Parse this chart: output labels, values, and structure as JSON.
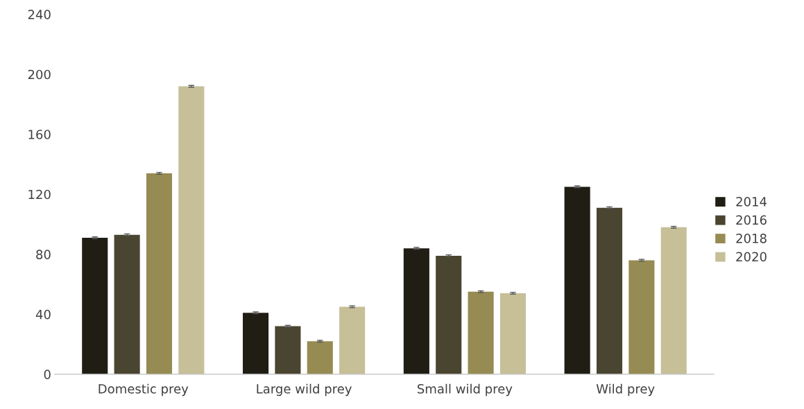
{
  "chart_data": {
    "type": "bar",
    "categories": [
      "Domestic prey",
      "Large wild prey",
      "Small wild prey",
      "Wild prey"
    ],
    "series": [
      {
        "name": "2014",
        "color": "#1f1d14",
        "values": [
          91,
          41,
          84,
          125
        ],
        "errors": [
          0.6,
          0.6,
          0.6,
          0.6
        ]
      },
      {
        "name": "2016",
        "color": "#4a4530",
        "values": [
          93,
          32,
          79,
          111
        ],
        "errors": [
          0.6,
          0.6,
          0.6,
          0.6
        ]
      },
      {
        "name": "2018",
        "color": "#968b52",
        "values": [
          134,
          22,
          55,
          76
        ],
        "errors": [
          0.6,
          0.6,
          0.6,
          0.6
        ]
      },
      {
        "name": "2020",
        "color": "#c6bf98",
        "values": [
          192,
          45,
          54,
          98
        ],
        "errors": [
          0.6,
          0.6,
          0.6,
          0.6
        ]
      }
    ],
    "ylim": [
      0,
      240
    ],
    "yticks": [
      0,
      40,
      80,
      120,
      160,
      200,
      240
    ],
    "grid": false,
    "legend": "right"
  }
}
